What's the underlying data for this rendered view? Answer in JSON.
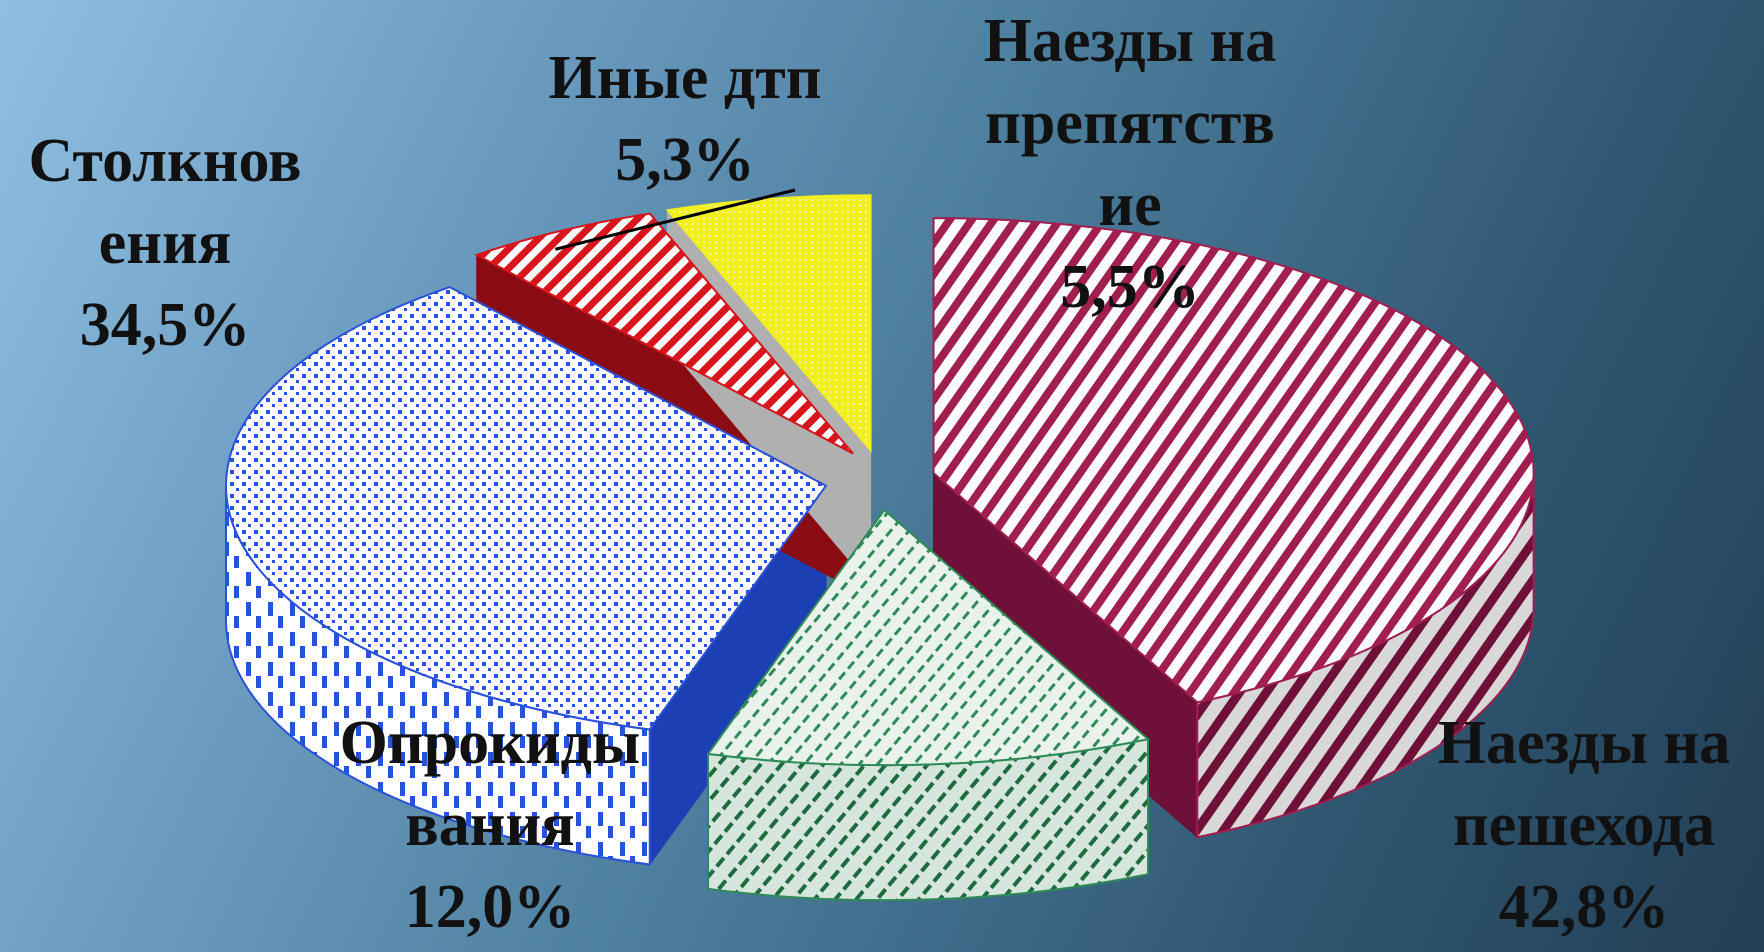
{
  "chart_data": {
    "type": "pie",
    "title": "",
    "slices": [
      {
        "key": "pedestrian",
        "label_lines": [
          "Наезды на",
          "пешехода"
        ],
        "value_label": "42,8%",
        "value": 42.8,
        "color": "#a01e50",
        "pattern": "diagonal-stripes"
      },
      {
        "key": "overturn",
        "label_lines": [
          "Опрокиды",
          "вания"
        ],
        "value_label": "12,0%",
        "value": 12.0,
        "color": "#2e8b57",
        "pattern": "diagonal-dashes"
      },
      {
        "key": "collision",
        "label_lines": [
          "Столкнов",
          "ения"
        ],
        "value_label": "34,5%",
        "value": 34.5,
        "color": "#2a52d8",
        "pattern": "dots"
      },
      {
        "key": "other",
        "label_lines": [
          "Иные дтп"
        ],
        "value_label": "5,3%",
        "value": 5.3,
        "color": "#d8141c",
        "pattern": "diagonal-stripes"
      },
      {
        "key": "obstacle",
        "label_lines": [
          "Наезды на",
          "препятств",
          "ие"
        ],
        "value_label": "5,5%",
        "value": 5.5,
        "color": "#f2ef1e",
        "pattern": "fine-dots"
      }
    ]
  }
}
